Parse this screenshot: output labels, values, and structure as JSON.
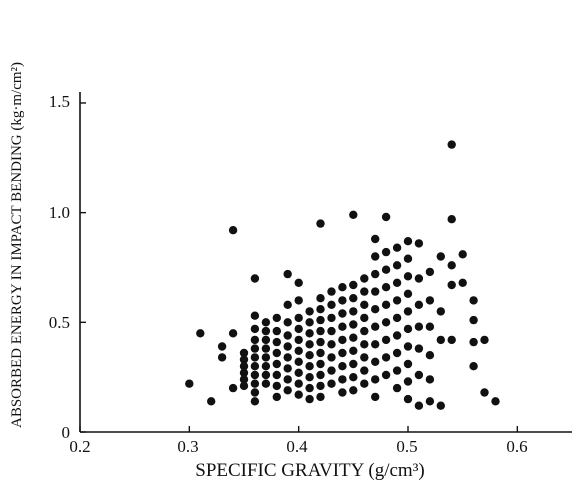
{
  "chart_data": {
    "type": "scatter",
    "title": "",
    "xlabel": "SPECIFIC GRAVITY (g/cm³)",
    "ylabel": "ABSORBED ENERGY IN IMPACT BENDING (kg·m/cm²)",
    "xlim": [
      0.2,
      0.65
    ],
    "ylim": [
      0,
      1.55
    ],
    "xticks": [
      "0.2",
      "0.3",
      "0.4",
      "0.5",
      "0.6"
    ],
    "yticks": [
      "0",
      "0.5",
      "1.0",
      "1.5"
    ],
    "grid": false,
    "marker_color": "#111111",
    "points": [
      [
        0.3,
        0.22
      ],
      [
        0.31,
        0.45
      ],
      [
        0.32,
        0.14
      ],
      [
        0.33,
        0.39
      ],
      [
        0.33,
        0.34
      ],
      [
        0.34,
        0.92
      ],
      [
        0.34,
        0.45
      ],
      [
        0.34,
        0.2
      ],
      [
        0.35,
        0.36
      ],
      [
        0.35,
        0.33
      ],
      [
        0.35,
        0.3
      ],
      [
        0.35,
        0.27
      ],
      [
        0.35,
        0.24
      ],
      [
        0.35,
        0.21
      ],
      [
        0.36,
        0.7
      ],
      [
        0.36,
        0.53
      ],
      [
        0.36,
        0.47
      ],
      [
        0.36,
        0.42
      ],
      [
        0.36,
        0.38
      ],
      [
        0.36,
        0.34
      ],
      [
        0.36,
        0.3
      ],
      [
        0.36,
        0.26
      ],
      [
        0.36,
        0.22
      ],
      [
        0.36,
        0.18
      ],
      [
        0.36,
        0.14
      ],
      [
        0.37,
        0.5
      ],
      [
        0.37,
        0.46
      ],
      [
        0.37,
        0.42
      ],
      [
        0.37,
        0.38
      ],
      [
        0.37,
        0.34
      ],
      [
        0.37,
        0.3
      ],
      [
        0.37,
        0.26
      ],
      [
        0.37,
        0.22
      ],
      [
        0.38,
        0.52
      ],
      [
        0.38,
        0.46
      ],
      [
        0.38,
        0.41
      ],
      [
        0.38,
        0.36
      ],
      [
        0.38,
        0.31
      ],
      [
        0.38,
        0.26
      ],
      [
        0.38,
        0.21
      ],
      [
        0.38,
        0.16
      ],
      [
        0.39,
        0.72
      ],
      [
        0.39,
        0.58
      ],
      [
        0.39,
        0.5
      ],
      [
        0.39,
        0.44
      ],
      [
        0.39,
        0.39
      ],
      [
        0.39,
        0.34
      ],
      [
        0.39,
        0.29
      ],
      [
        0.39,
        0.24
      ],
      [
        0.39,
        0.19
      ],
      [
        0.4,
        0.68
      ],
      [
        0.4,
        0.6
      ],
      [
        0.4,
        0.52
      ],
      [
        0.4,
        0.47
      ],
      [
        0.4,
        0.42
      ],
      [
        0.4,
        0.37
      ],
      [
        0.4,
        0.32
      ],
      [
        0.4,
        0.27
      ],
      [
        0.4,
        0.22
      ],
      [
        0.4,
        0.17
      ],
      [
        0.41,
        0.55
      ],
      [
        0.41,
        0.5
      ],
      [
        0.41,
        0.45
      ],
      [
        0.41,
        0.4
      ],
      [
        0.41,
        0.35
      ],
      [
        0.41,
        0.3
      ],
      [
        0.41,
        0.25
      ],
      [
        0.41,
        0.2
      ],
      [
        0.41,
        0.15
      ],
      [
        0.42,
        0.95
      ],
      [
        0.42,
        0.61
      ],
      [
        0.42,
        0.56
      ],
      [
        0.42,
        0.51
      ],
      [
        0.42,
        0.46
      ],
      [
        0.42,
        0.41
      ],
      [
        0.42,
        0.36
      ],
      [
        0.42,
        0.31
      ],
      [
        0.42,
        0.26
      ],
      [
        0.42,
        0.21
      ],
      [
        0.42,
        0.16
      ],
      [
        0.43,
        0.64
      ],
      [
        0.43,
        0.58
      ],
      [
        0.43,
        0.52
      ],
      [
        0.43,
        0.46
      ],
      [
        0.43,
        0.4
      ],
      [
        0.43,
        0.34
      ],
      [
        0.43,
        0.28
      ],
      [
        0.43,
        0.22
      ],
      [
        0.44,
        0.66
      ],
      [
        0.44,
        0.6
      ],
      [
        0.44,
        0.54
      ],
      [
        0.44,
        0.48
      ],
      [
        0.44,
        0.42
      ],
      [
        0.44,
        0.36
      ],
      [
        0.44,
        0.3
      ],
      [
        0.44,
        0.24
      ],
      [
        0.44,
        0.18
      ],
      [
        0.45,
        0.99
      ],
      [
        0.45,
        0.67
      ],
      [
        0.45,
        0.61
      ],
      [
        0.45,
        0.55
      ],
      [
        0.45,
        0.49
      ],
      [
        0.45,
        0.43
      ],
      [
        0.45,
        0.37
      ],
      [
        0.45,
        0.31
      ],
      [
        0.45,
        0.25
      ],
      [
        0.45,
        0.19
      ],
      [
        0.46,
        0.7
      ],
      [
        0.46,
        0.64
      ],
      [
        0.46,
        0.58
      ],
      [
        0.46,
        0.52
      ],
      [
        0.46,
        0.46
      ],
      [
        0.46,
        0.4
      ],
      [
        0.46,
        0.34
      ],
      [
        0.46,
        0.28
      ],
      [
        0.46,
        0.22
      ],
      [
        0.47,
        0.88
      ],
      [
        0.47,
        0.8
      ],
      [
        0.47,
        0.72
      ],
      [
        0.47,
        0.64
      ],
      [
        0.47,
        0.56
      ],
      [
        0.47,
        0.48
      ],
      [
        0.47,
        0.4
      ],
      [
        0.47,
        0.32
      ],
      [
        0.47,
        0.24
      ],
      [
        0.47,
        0.16
      ],
      [
        0.48,
        0.98
      ],
      [
        0.48,
        0.82
      ],
      [
        0.48,
        0.74
      ],
      [
        0.48,
        0.66
      ],
      [
        0.48,
        0.58
      ],
      [
        0.48,
        0.5
      ],
      [
        0.48,
        0.42
      ],
      [
        0.48,
        0.34
      ],
      [
        0.48,
        0.26
      ],
      [
        0.49,
        0.84
      ],
      [
        0.49,
        0.76
      ],
      [
        0.49,
        0.68
      ],
      [
        0.49,
        0.6
      ],
      [
        0.49,
        0.52
      ],
      [
        0.49,
        0.44
      ],
      [
        0.49,
        0.36
      ],
      [
        0.49,
        0.28
      ],
      [
        0.49,
        0.2
      ],
      [
        0.5,
        0.87
      ],
      [
        0.5,
        0.79
      ],
      [
        0.5,
        0.71
      ],
      [
        0.5,
        0.63
      ],
      [
        0.5,
        0.55
      ],
      [
        0.5,
        0.47
      ],
      [
        0.5,
        0.39
      ],
      [
        0.5,
        0.31
      ],
      [
        0.5,
        0.23
      ],
      [
        0.5,
        0.15
      ],
      [
        0.51,
        0.86
      ],
      [
        0.51,
        0.7
      ],
      [
        0.51,
        0.58
      ],
      [
        0.51,
        0.48
      ],
      [
        0.51,
        0.38
      ],
      [
        0.51,
        0.26
      ],
      [
        0.51,
        0.12
      ],
      [
        0.52,
        0.73
      ],
      [
        0.52,
        0.6
      ],
      [
        0.52,
        0.48
      ],
      [
        0.52,
        0.35
      ],
      [
        0.52,
        0.24
      ],
      [
        0.52,
        0.14
      ],
      [
        0.53,
        0.8
      ],
      [
        0.53,
        0.55
      ],
      [
        0.53,
        0.42
      ],
      [
        0.53,
        0.12
      ],
      [
        0.54,
        1.31
      ],
      [
        0.54,
        0.97
      ],
      [
        0.54,
        0.76
      ],
      [
        0.54,
        0.67
      ],
      [
        0.54,
        0.42
      ],
      [
        0.55,
        0.81
      ],
      [
        0.55,
        0.68
      ],
      [
        0.56,
        0.6
      ],
      [
        0.56,
        0.51
      ],
      [
        0.56,
        0.41
      ],
      [
        0.56,
        0.3
      ],
      [
        0.57,
        0.42
      ],
      [
        0.57,
        0.18
      ],
      [
        0.58,
        0.14
      ]
    ]
  }
}
